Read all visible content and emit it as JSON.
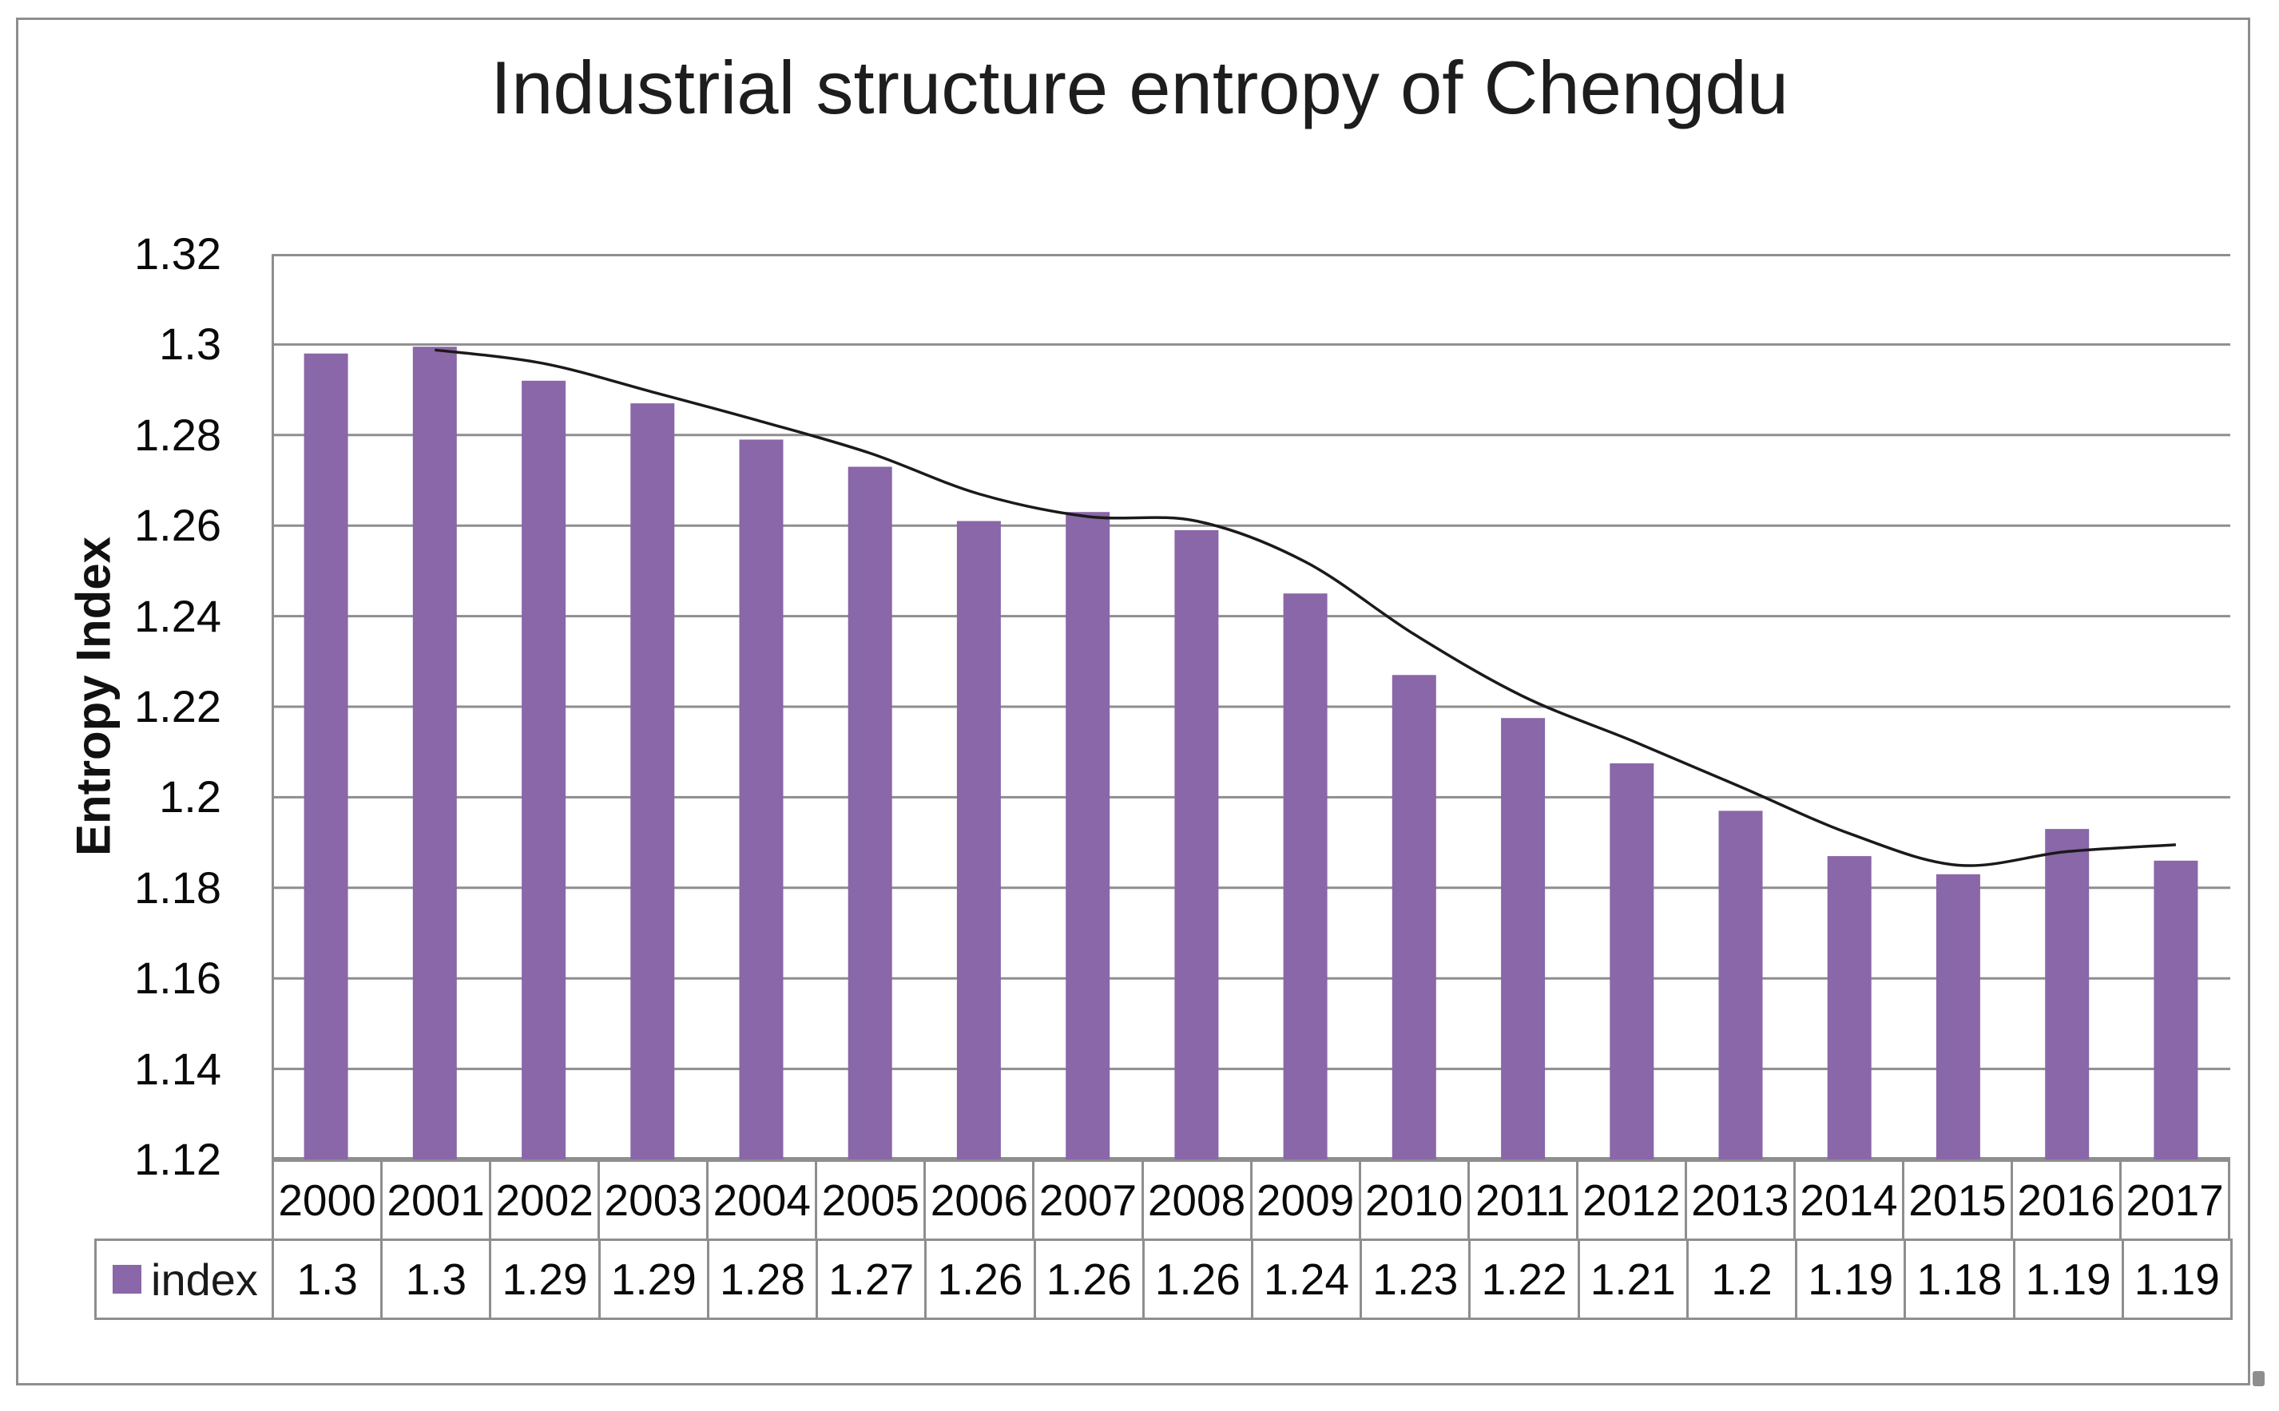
{
  "figure": {
    "title": "Industrial structure entropy of Chengdu",
    "y_axis_title": "Entropy Index",
    "y_tick_labels": [
      "1.32",
      "1.3",
      "1.28",
      "1.26",
      "1.24",
      "1.22",
      "1.2",
      "1.18",
      "1.16",
      "1.14",
      "1.12"
    ],
    "legend_label": "index",
    "colors": {
      "bar": "#8A67A8",
      "line": "#1A1A1A",
      "grid": "#8E8E8E",
      "frame": "#8E8E8E",
      "text": "#000000"
    }
  },
  "chart_data": {
    "type": "bar",
    "title": "Industrial structure entropy of Chengdu",
    "xlabel": "",
    "ylabel": "Entropy Index",
    "categories": [
      "2000",
      "2001",
      "2002",
      "2003",
      "2004",
      "2005",
      "2006",
      "2007",
      "2008",
      "2009",
      "2010",
      "2011",
      "2012",
      "2013",
      "2014",
      "2015",
      "2016",
      "2017"
    ],
    "series": [
      {
        "name": "index",
        "type": "bar",
        "color": "#8A67A8",
        "values": [
          1.298,
          1.2995,
          1.292,
          1.287,
          1.279,
          1.273,
          1.261,
          1.263,
          1.259,
          1.245,
          1.227,
          1.2175,
          1.2075,
          1.197,
          1.187,
          1.183,
          1.193,
          1.186
        ]
      },
      {
        "name": "trend-line",
        "type": "line",
        "color": "#1A1A1A",
        "smooth": true,
        "values": [
          null,
          1.2988,
          1.2958,
          1.2895,
          1.283,
          1.276,
          1.267,
          1.262,
          1.261,
          1.252,
          1.236,
          1.2223,
          1.2125,
          1.2023,
          1.192,
          1.185,
          1.188,
          1.1895
        ]
      }
    ],
    "data_table": {
      "row_label": "index",
      "values": [
        "1.3",
        "1.3",
        "1.29",
        "1.29",
        "1.28",
        "1.27",
        "1.26",
        "1.26",
        "1.26",
        "1.24",
        "1.23",
        "1.22",
        "1.21",
        "1.2",
        "1.19",
        "1.18",
        "1.19",
        "1.19"
      ]
    },
    "ylim": [
      1.12,
      1.32
    ],
    "ytick_step": 0.02,
    "grid": true,
    "legend_position": "data-table-left"
  }
}
